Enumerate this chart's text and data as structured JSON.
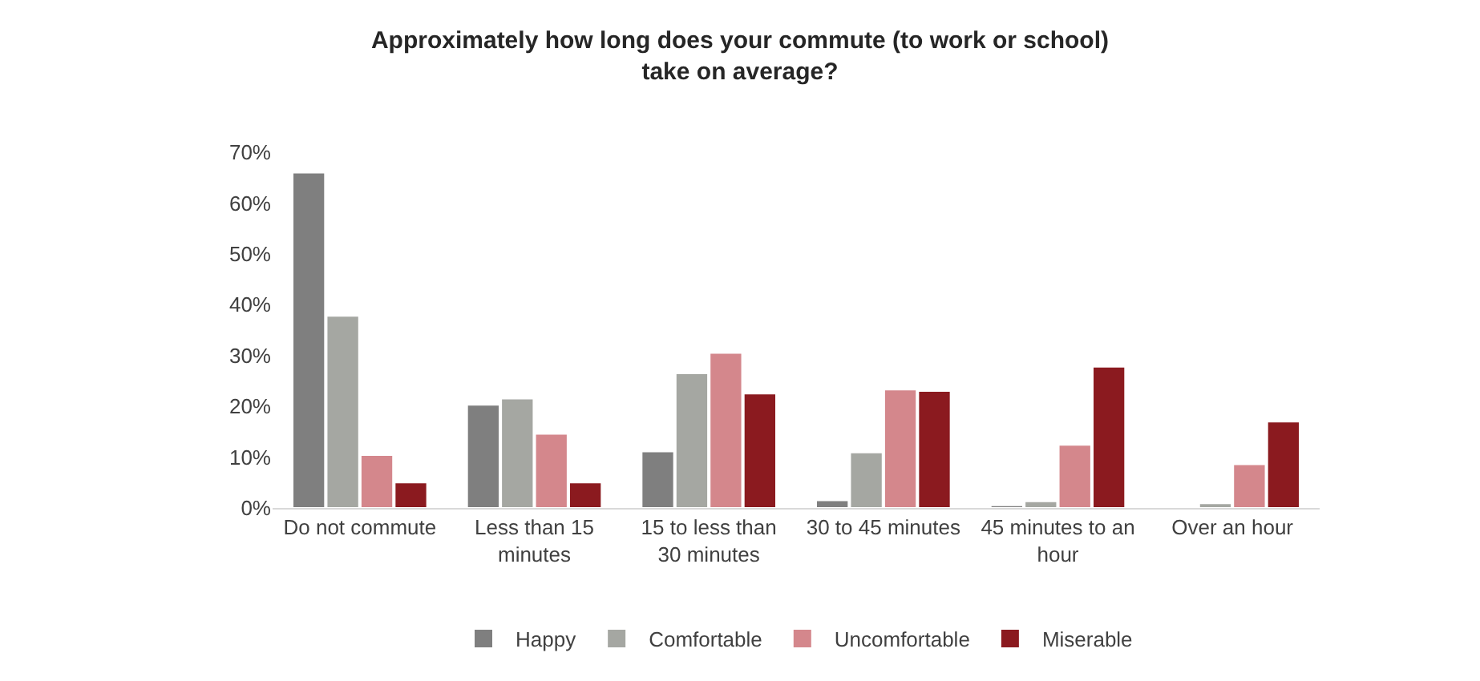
{
  "chart_data": {
    "type": "bar",
    "title": "Approximately how long does your commute (to work or school) take on average?",
    "categories": [
      "Do not commute",
      "Less than 15 minutes",
      "15 to less than 30 minutes",
      "30 to 45 minutes",
      "45 minutes to an hour",
      "Over an hour"
    ],
    "series": [
      {
        "name": "Happy",
        "color": "#7f7f7f",
        "values": [
          66,
          20.3,
          11.1,
          1.5,
          0.5,
          null
        ]
      },
      {
        "name": "Comfortable",
        "color": "#a5a7a2",
        "values": [
          37.8,
          21.5,
          26.5,
          10.9,
          1.3,
          0.9
        ]
      },
      {
        "name": "Uncomfortable",
        "color": "#d4878c",
        "values": [
          10.4,
          14.6,
          30.5,
          23.3,
          12.4,
          8.6
        ]
      },
      {
        "name": "Miserable",
        "color": "#8b1a1f",
        "values": [
          5,
          5,
          22.5,
          23,
          27.8,
          17
        ]
      }
    ],
    "ylim": [
      0,
      70
    ],
    "yticks": [
      {
        "value": 0,
        "label": "0%"
      },
      {
        "value": 10,
        "label": "10%"
      },
      {
        "value": 20,
        "label": "20%"
      },
      {
        "value": 30,
        "label": "30%"
      },
      {
        "value": 40,
        "label": "40%"
      },
      {
        "value": 50,
        "label": "50%"
      },
      {
        "value": 60,
        "label": "60%"
      },
      {
        "value": 70,
        "label": "70%"
      }
    ],
    "legend": "bottom"
  }
}
